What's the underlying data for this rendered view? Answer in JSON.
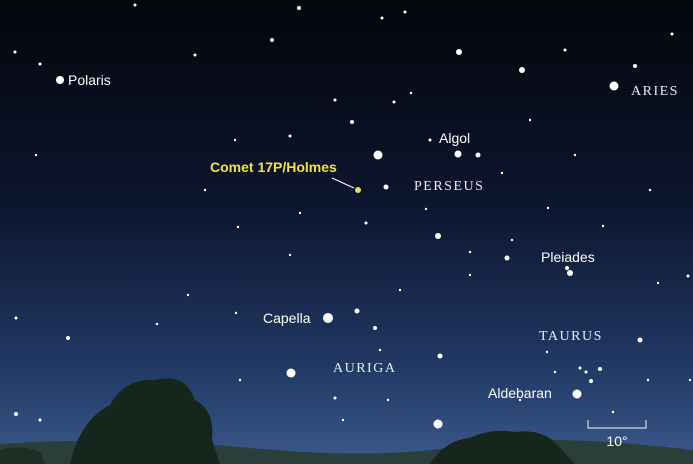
{
  "named_objects": [
    "Polaris",
    "Algol",
    "Comet 17P/Holmes",
    "Pleiades",
    "Capella",
    "Aldebaran"
  ],
  "constellations": [
    "ARIES",
    "PERSEUS",
    "TAURUS",
    "AURIGA"
  ],
  "scale_bar": "10°"
}
